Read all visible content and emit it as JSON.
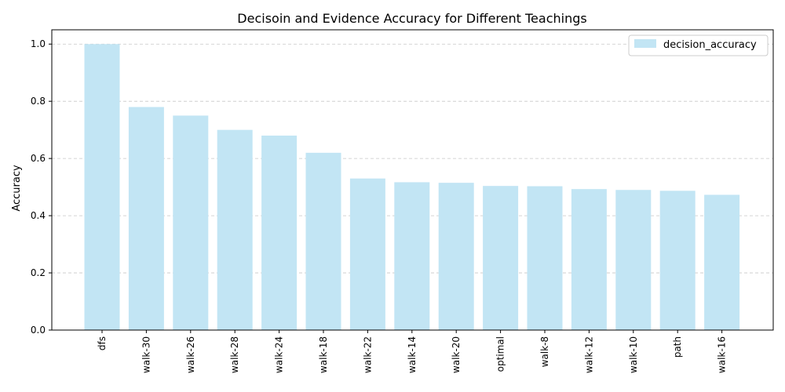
{
  "chart_data": {
    "type": "bar",
    "title": "Decisoin and Evidence Accuracy for Different Teachings",
    "xlabel": "",
    "ylabel": "Accuracy",
    "ylim": [
      0,
      1.05
    ],
    "yticks": [
      "0.0",
      "0.2",
      "0.4",
      "0.6",
      "0.8",
      "1.0"
    ],
    "grid": "y-dashed",
    "legend_position": "top-right",
    "bar_color": "#c2e5f4",
    "categories": [
      "dfs",
      "walk-30",
      "walk-26",
      "walk-28",
      "walk-24",
      "walk-18",
      "walk-22",
      "walk-14",
      "walk-20",
      "optimal",
      "walk-8",
      "walk-12",
      "walk-10",
      "path",
      "walk-16"
    ],
    "series": [
      {
        "name": "decision_accuracy",
        "values": [
          1.0,
          0.78,
          0.75,
          0.7,
          0.68,
          0.62,
          0.53,
          0.517,
          0.515,
          0.504,
          0.503,
          0.493,
          0.49,
          0.487,
          0.473
        ]
      }
    ]
  }
}
